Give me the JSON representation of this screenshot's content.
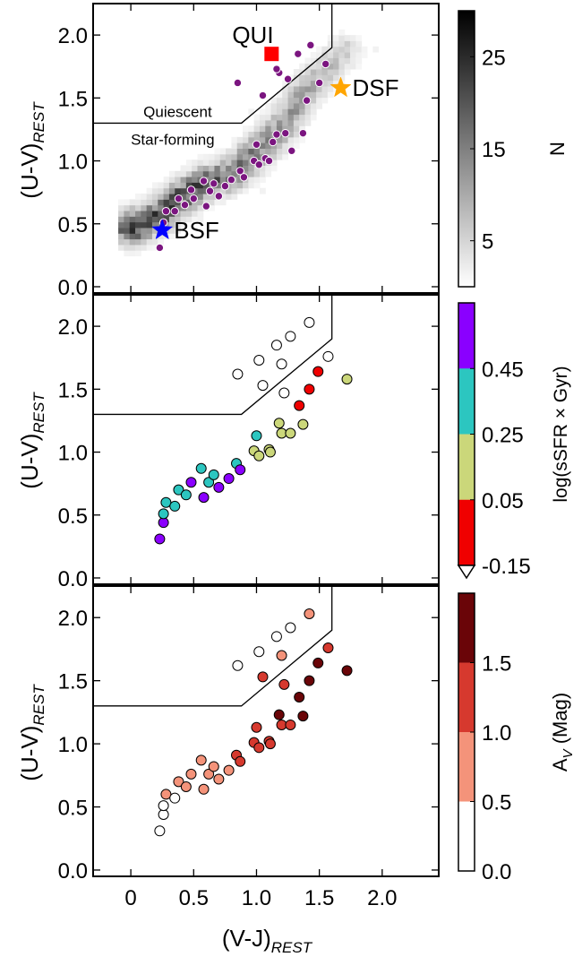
{
  "figure": {
    "xlabel_main": "(V-J)",
    "xlabel_sub": "REST",
    "ylabel_main": "(U-V)",
    "ylabel_sub": "REST"
  },
  "chart_data": [
    {
      "type": "heatmap",
      "panel": "top",
      "title": "",
      "xlabel": "(V-J)REST",
      "ylabel": "(U-V)REST",
      "xlim": [
        -0.3,
        2.45
      ],
      "ylim": [
        -0.05,
        2.25
      ],
      "yticks": [
        0.0,
        0.5,
        1.0,
        1.5,
        2.0
      ],
      "selection_line": [
        [
          -0.3,
          1.3
        ],
        [
          0.88,
          1.3
        ],
        [
          1.6,
          1.9
        ],
        [
          1.6,
          2.25
        ]
      ],
      "region_labels": {
        "upper": "Quiescent",
        "lower": "Star-forming"
      },
      "density_ridge": [
        [
          0.0,
          0.47
        ],
        [
          0.2,
          0.55
        ],
        [
          0.4,
          0.72
        ],
        [
          0.6,
          0.83
        ],
        [
          0.8,
          0.9
        ],
        [
          1.0,
          1.07
        ],
        [
          1.2,
          1.27
        ],
        [
          1.35,
          1.5
        ],
        [
          1.5,
          1.68
        ],
        [
          1.7,
          1.87
        ]
      ],
      "colorbar": {
        "label": "N",
        "ticks": [
          5,
          15,
          25
        ],
        "range": [
          0,
          30
        ],
        "colors": [
          "#ffffff",
          "#000000"
        ]
      },
      "points": {
        "color": "#7b1580",
        "x": [
          0.23,
          0.26,
          0.26,
          0.28,
          0.35,
          0.38,
          0.43,
          0.48,
          0.5,
          0.58,
          0.6,
          0.63,
          0.66,
          0.7,
          0.75,
          0.8,
          0.87,
          0.9,
          0.98,
          1.0,
          1.02,
          1.07,
          1.1,
          1.13,
          1.16,
          1.18,
          1.23,
          1.25,
          1.28,
          1.33,
          1.37,
          1.4,
          1.43,
          1.5,
          1.55,
          0.85,
          1.05,
          1.16
        ],
        "y": [
          0.31,
          0.45,
          0.51,
          0.6,
          0.6,
          0.7,
          0.65,
          0.77,
          0.7,
          0.84,
          0.64,
          0.76,
          0.82,
          0.72,
          0.8,
          0.85,
          0.92,
          0.87,
          1.0,
          1.13,
          0.97,
          1.02,
          1.0,
          1.15,
          1.21,
          1.7,
          1.22,
          1.65,
          1.08,
          1.85,
          1.22,
          1.48,
          1.92,
          1.62,
          1.77,
          1.62,
          1.52,
          1.73
        ]
      },
      "markers": [
        {
          "label": "QUI",
          "x": 1.12,
          "y": 1.85,
          "shape": "square",
          "color": "#ff0000"
        },
        {
          "label": "DSF",
          "x": 1.67,
          "y": 1.58,
          "shape": "star",
          "color": "#ffa500"
        },
        {
          "label": "BSF",
          "x": 0.25,
          "y": 0.45,
          "shape": "star",
          "color": "#0000ff"
        }
      ]
    },
    {
      "type": "scatter",
      "panel": "middle",
      "xlabel": "(V-J)REST",
      "ylabel": "(U-V)REST",
      "xlim": [
        -0.3,
        2.45
      ],
      "ylim": [
        -0.05,
        2.25
      ],
      "yticks": [
        0.0,
        0.5,
        1.0,
        1.5,
        2.0
      ],
      "selection_line": [
        [
          -0.3,
          1.3
        ],
        [
          0.88,
          1.3
        ],
        [
          1.6,
          1.9
        ],
        [
          1.6,
          2.25
        ]
      ],
      "colorbar": {
        "label": "log(sSFR × Gyr)",
        "ticks": [
          "0.45",
          "0.25",
          "0.05",
          "-0.15"
        ],
        "bins": [
          "#8a00ff",
          "#2cc6c0",
          "#cbd77a",
          "#f00000"
        ],
        "extend": "min"
      },
      "points": [
        {
          "x": 0.23,
          "y": 0.31,
          "c": "#8a00ff"
        },
        {
          "x": 0.26,
          "y": 0.44,
          "c": "#8a00ff"
        },
        {
          "x": 0.26,
          "y": 0.51,
          "c": "#2cc6c0"
        },
        {
          "x": 0.28,
          "y": 0.6,
          "c": "#2cc6c0"
        },
        {
          "x": 0.35,
          "y": 0.57,
          "c": "#2cc6c0"
        },
        {
          "x": 0.38,
          "y": 0.7,
          "c": "#2cc6c0"
        },
        {
          "x": 0.44,
          "y": 0.66,
          "c": "#2cc6c0"
        },
        {
          "x": 0.48,
          "y": 0.76,
          "c": "#8a00ff"
        },
        {
          "x": 0.56,
          "y": 0.87,
          "c": "#2cc6c0"
        },
        {
          "x": 0.58,
          "y": 0.64,
          "c": "#8a00ff"
        },
        {
          "x": 0.62,
          "y": 0.76,
          "c": "#2cc6c0"
        },
        {
          "x": 0.66,
          "y": 0.82,
          "c": "#2cc6c0"
        },
        {
          "x": 0.7,
          "y": 0.72,
          "c": "#8a00ff"
        },
        {
          "x": 0.78,
          "y": 0.79,
          "c": "#8a00ff"
        },
        {
          "x": 0.84,
          "y": 0.91,
          "c": "#2cc6c0"
        },
        {
          "x": 0.87,
          "y": 0.86,
          "c": "#8a00ff"
        },
        {
          "x": 0.98,
          "y": 1.01,
          "c": "#cbd77a"
        },
        {
          "x": 1.0,
          "y": 1.13,
          "c": "#2cc6c0"
        },
        {
          "x": 1.02,
          "y": 0.97,
          "c": "#cbd77a"
        },
        {
          "x": 1.1,
          "y": 1.02,
          "c": "#cbd77a"
        },
        {
          "x": 1.11,
          "y": 1.0,
          "c": "#cbd77a"
        },
        {
          "x": 1.18,
          "y": 1.23,
          "c": "#cbd77a"
        },
        {
          "x": 1.2,
          "y": 1.15,
          "c": "#cbd77a"
        },
        {
          "x": 1.27,
          "y": 1.15,
          "c": "#cbd77a"
        },
        {
          "x": 1.34,
          "y": 1.37,
          "c": "#f00000"
        },
        {
          "x": 1.37,
          "y": 1.22,
          "c": "#cbd77a"
        },
        {
          "x": 1.42,
          "y": 1.5,
          "c": "#f00000"
        },
        {
          "x": 1.49,
          "y": 1.64,
          "c": "#f00000"
        },
        {
          "x": 1.72,
          "y": 1.58,
          "c": "#cbd77a"
        },
        {
          "x": 0.85,
          "y": 1.62,
          "c": "#ffffff"
        },
        {
          "x": 1.02,
          "y": 1.73,
          "c": "#ffffff"
        },
        {
          "x": 1.05,
          "y": 1.53,
          "c": "#ffffff"
        },
        {
          "x": 1.16,
          "y": 1.85,
          "c": "#ffffff"
        },
        {
          "x": 1.2,
          "y": 1.7,
          "c": "#ffffff"
        },
        {
          "x": 1.22,
          "y": 1.47,
          "c": "#ffffff"
        },
        {
          "x": 1.27,
          "y": 1.92,
          "c": "#ffffff"
        },
        {
          "x": 1.42,
          "y": 2.03,
          "c": "#ffffff"
        },
        {
          "x": 1.57,
          "y": 1.76,
          "c": "#ffffff"
        }
      ]
    },
    {
      "type": "scatter",
      "panel": "bottom",
      "xlabel": "(V-J)REST",
      "ylabel": "(U-V)REST",
      "xlim": [
        -0.3,
        2.45
      ],
      "ylim": [
        -0.05,
        2.25
      ],
      "xticks": [
        0,
        0.5,
        1.0,
        1.5,
        2.0
      ],
      "xticklabels": [
        "0",
        "0.5",
        "1.0",
        "1.5",
        "2.0"
      ],
      "yticks": [
        0.0,
        0.5,
        1.0,
        1.5,
        2.0
      ],
      "selection_line": [
        [
          -0.3,
          1.3
        ],
        [
          0.88,
          1.3
        ],
        [
          1.6,
          1.9
        ],
        [
          1.6,
          2.25
        ]
      ],
      "colorbar": {
        "label_main": "A",
        "label_sub": "V",
        "label_unit": " (Mag)",
        "ticks": [
          "1.5",
          "1.0",
          "0.5",
          "0.0"
        ],
        "bins": [
          "#6a0508",
          "#d6392e",
          "#f4937a",
          "#ffffff"
        ]
      },
      "points": [
        {
          "x": 0.23,
          "y": 0.31,
          "c": "#ffffff"
        },
        {
          "x": 0.26,
          "y": 0.44,
          "c": "#ffffff"
        },
        {
          "x": 0.26,
          "y": 0.51,
          "c": "#ffffff"
        },
        {
          "x": 0.28,
          "y": 0.6,
          "c": "#f4937a"
        },
        {
          "x": 0.35,
          "y": 0.57,
          "c": "#ffffff"
        },
        {
          "x": 0.38,
          "y": 0.7,
          "c": "#f4937a"
        },
        {
          "x": 0.44,
          "y": 0.66,
          "c": "#f4937a"
        },
        {
          "x": 0.48,
          "y": 0.76,
          "c": "#f4937a"
        },
        {
          "x": 0.56,
          "y": 0.87,
          "c": "#f4937a"
        },
        {
          "x": 0.58,
          "y": 0.64,
          "c": "#f4937a"
        },
        {
          "x": 0.62,
          "y": 0.76,
          "c": "#f4937a"
        },
        {
          "x": 0.66,
          "y": 0.82,
          "c": "#f4937a"
        },
        {
          "x": 0.7,
          "y": 0.72,
          "c": "#f4937a"
        },
        {
          "x": 0.78,
          "y": 0.79,
          "c": "#f4937a"
        },
        {
          "x": 0.84,
          "y": 0.91,
          "c": "#d6392e"
        },
        {
          "x": 0.87,
          "y": 0.86,
          "c": "#d6392e"
        },
        {
          "x": 0.98,
          "y": 1.01,
          "c": "#d6392e"
        },
        {
          "x": 1.0,
          "y": 1.13,
          "c": "#d6392e"
        },
        {
          "x": 1.02,
          "y": 0.97,
          "c": "#d6392e"
        },
        {
          "x": 1.1,
          "y": 1.02,
          "c": "#d6392e"
        },
        {
          "x": 1.11,
          "y": 1.0,
          "c": "#d6392e"
        },
        {
          "x": 1.18,
          "y": 1.23,
          "c": "#6a0508"
        },
        {
          "x": 1.2,
          "y": 1.15,
          "c": "#d6392e"
        },
        {
          "x": 1.27,
          "y": 1.15,
          "c": "#d6392e"
        },
        {
          "x": 1.34,
          "y": 1.37,
          "c": "#6a0508"
        },
        {
          "x": 1.37,
          "y": 1.22,
          "c": "#6a0508"
        },
        {
          "x": 1.42,
          "y": 1.5,
          "c": "#6a0508"
        },
        {
          "x": 1.49,
          "y": 1.64,
          "c": "#6a0508"
        },
        {
          "x": 1.72,
          "y": 1.58,
          "c": "#6a0508"
        },
        {
          "x": 0.85,
          "y": 1.62,
          "c": "#ffffff"
        },
        {
          "x": 1.02,
          "y": 1.73,
          "c": "#ffffff"
        },
        {
          "x": 1.05,
          "y": 1.53,
          "c": "#d6392e"
        },
        {
          "x": 1.16,
          "y": 1.85,
          "c": "#ffffff"
        },
        {
          "x": 1.2,
          "y": 1.7,
          "c": "#f4937a"
        },
        {
          "x": 1.22,
          "y": 1.47,
          "c": "#d6392e"
        },
        {
          "x": 1.27,
          "y": 1.92,
          "c": "#ffffff"
        },
        {
          "x": 1.42,
          "y": 2.03,
          "c": "#f4937a"
        },
        {
          "x": 1.57,
          "y": 1.76,
          "c": "#d6392e"
        }
      ]
    }
  ]
}
